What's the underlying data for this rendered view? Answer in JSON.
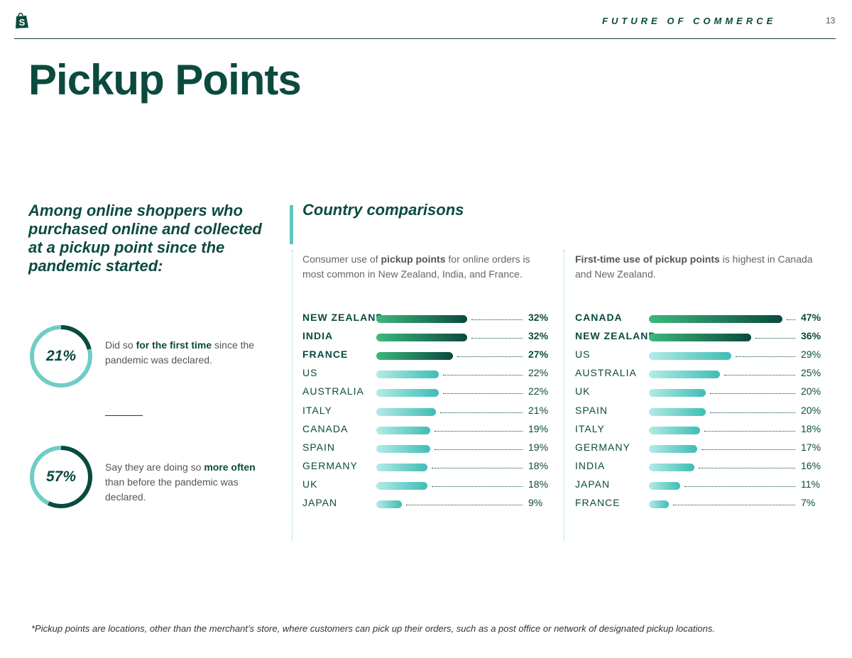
{
  "header": {
    "section_title": "FUTURE OF COMMERCE",
    "page_number": "13"
  },
  "page_title": "Pickup Points",
  "lead": "Among online shoppers who purchased online and collected at a pickup point since the pandemic started:",
  "stats": [
    {
      "value": 21,
      "label": "21%",
      "text_before": "Did so ",
      "text_bold": "for the first time",
      "text_after": " since the pandemic was declared."
    },
    {
      "value": 57,
      "label": "57%",
      "text_before": "Say they are doing so ",
      "text_bold": "more often",
      "text_after": " than before the pandemic was declared."
    }
  ],
  "comparisons_title": "Country comparisons",
  "colors": {
    "dark": "#0b4a3f",
    "highlight_start": "#3db87c",
    "highlight_end": "#0b4a3f",
    "light_start": "#b3ebe6",
    "light_end": "#3ebdb5",
    "ring_track": "#6fcdc6",
    "accent": "#5cc7bd"
  },
  "chart_data": [
    {
      "type": "bar",
      "orientation": "horizontal",
      "title_prefix": "Consumer use of ",
      "title_bold": "pickup points",
      "title_suffix": " for online orders is most common in New Zealand, India, and France.",
      "categories": [
        "NEW ZEALAND",
        "INDIA",
        "FRANCE",
        "US",
        "AUSTRALIA",
        "ITALY",
        "CANADA",
        "SPAIN",
        "GERMANY",
        "UK",
        "JAPAN"
      ],
      "values": [
        32,
        32,
        27,
        22,
        22,
        21,
        19,
        19,
        18,
        18,
        9
      ],
      "labels": [
        "32%",
        "32%",
        "27%",
        "22%",
        "22%",
        "21%",
        "19%",
        "19%",
        "18%",
        "18%",
        "9%"
      ],
      "highlighted": [
        true,
        true,
        true,
        false,
        false,
        false,
        false,
        false,
        false,
        false,
        false
      ],
      "xlim": [
        0,
        50
      ],
      "unit": "%"
    },
    {
      "type": "bar",
      "orientation": "horizontal",
      "title_prefix": "",
      "title_bold": "First-time use of pickup points",
      "title_suffix": " is highest in Canada and New Zealand.",
      "categories": [
        "CANADA",
        "NEW ZEALAND",
        "US",
        "AUSTRALIA",
        "UK",
        "SPAIN",
        "ITALY",
        "GERMANY",
        "INDIA",
        "JAPAN",
        "FRANCE"
      ],
      "values": [
        47,
        36,
        29,
        25,
        20,
        20,
        18,
        17,
        16,
        11,
        7
      ],
      "labels": [
        "47%",
        "36%",
        "29%",
        "25%",
        "20%",
        "20%",
        "18%",
        "17%",
        "16%",
        "11%",
        "7%"
      ],
      "highlighted": [
        true,
        true,
        false,
        false,
        false,
        false,
        false,
        false,
        false,
        false,
        false
      ],
      "xlim": [
        0,
        50
      ],
      "unit": "%"
    }
  ],
  "footnote": "*Pickup points are locations, other than the merchant’s store, where customers can pick up their orders, such as a post office or network of designated pickup locations."
}
